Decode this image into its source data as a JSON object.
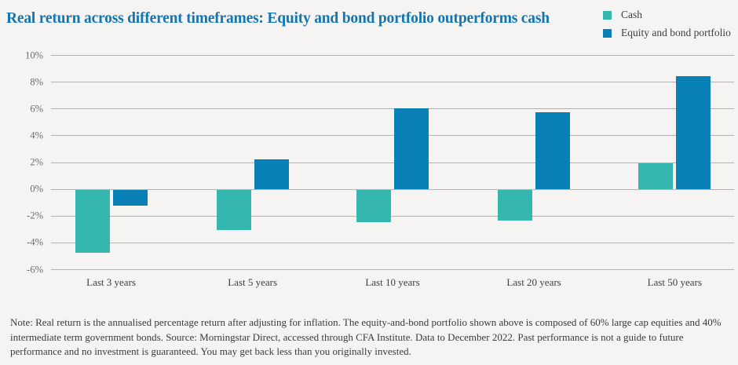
{
  "title": "Real return across different timeframes: Equity and bond portfolio outperforms cash",
  "legend": [
    {
      "label": "Cash",
      "color": "#35b6af"
    },
    {
      "label": "Equity and bond portfolio",
      "color": "#0981b6"
    }
  ],
  "note": "Note: Real return is the annualised percentage return after adjusting for inflation. The equity-and-bond portfolio shown above is composed of 60% large cap equities and 40% intermediate term government bonds. Source: Morningstar Direct, accessed through CFA Institute. Data to December 2022. Past performance is not a guide to future performance and no investment is guaranteed. You may get back less than you originally invested.",
  "colors": {
    "background": "#f5f4f3",
    "title": "#1276b3",
    "gridline": "#b2b2b2",
    "cash": "#35b6af",
    "portfolio": "#0981b6"
  },
  "chart_data": {
    "type": "bar",
    "title": "Real return across different timeframes: Equity and bond portfolio outperforms cash",
    "categories": [
      "Last 3 years",
      "Last 5 years",
      "Last 10 years",
      "Last 20 years",
      "Last 50 years"
    ],
    "series": [
      {
        "name": "Cash",
        "color": "#35b6af",
        "values": [
          -4.7,
          -3.0,
          -2.4,
          -2.3,
          1.9
        ]
      },
      {
        "name": "Equity and bond portfolio",
        "color": "#0981b6",
        "values": [
          -1.2,
          2.2,
          6.0,
          5.7,
          8.4
        ]
      }
    ],
    "xlabel": "",
    "ylabel": "",
    "ylim": [
      -6,
      10
    ],
    "ytick_values": [
      10,
      8,
      6,
      4,
      2,
      0,
      -2,
      -4,
      -6
    ],
    "ytick_labels": [
      "10%",
      "8%",
      "6%",
      "4%",
      "2%",
      "0%",
      "-2%",
      "-4%",
      "-6%"
    ],
    "grid": true,
    "legend_position": "top-right"
  }
}
